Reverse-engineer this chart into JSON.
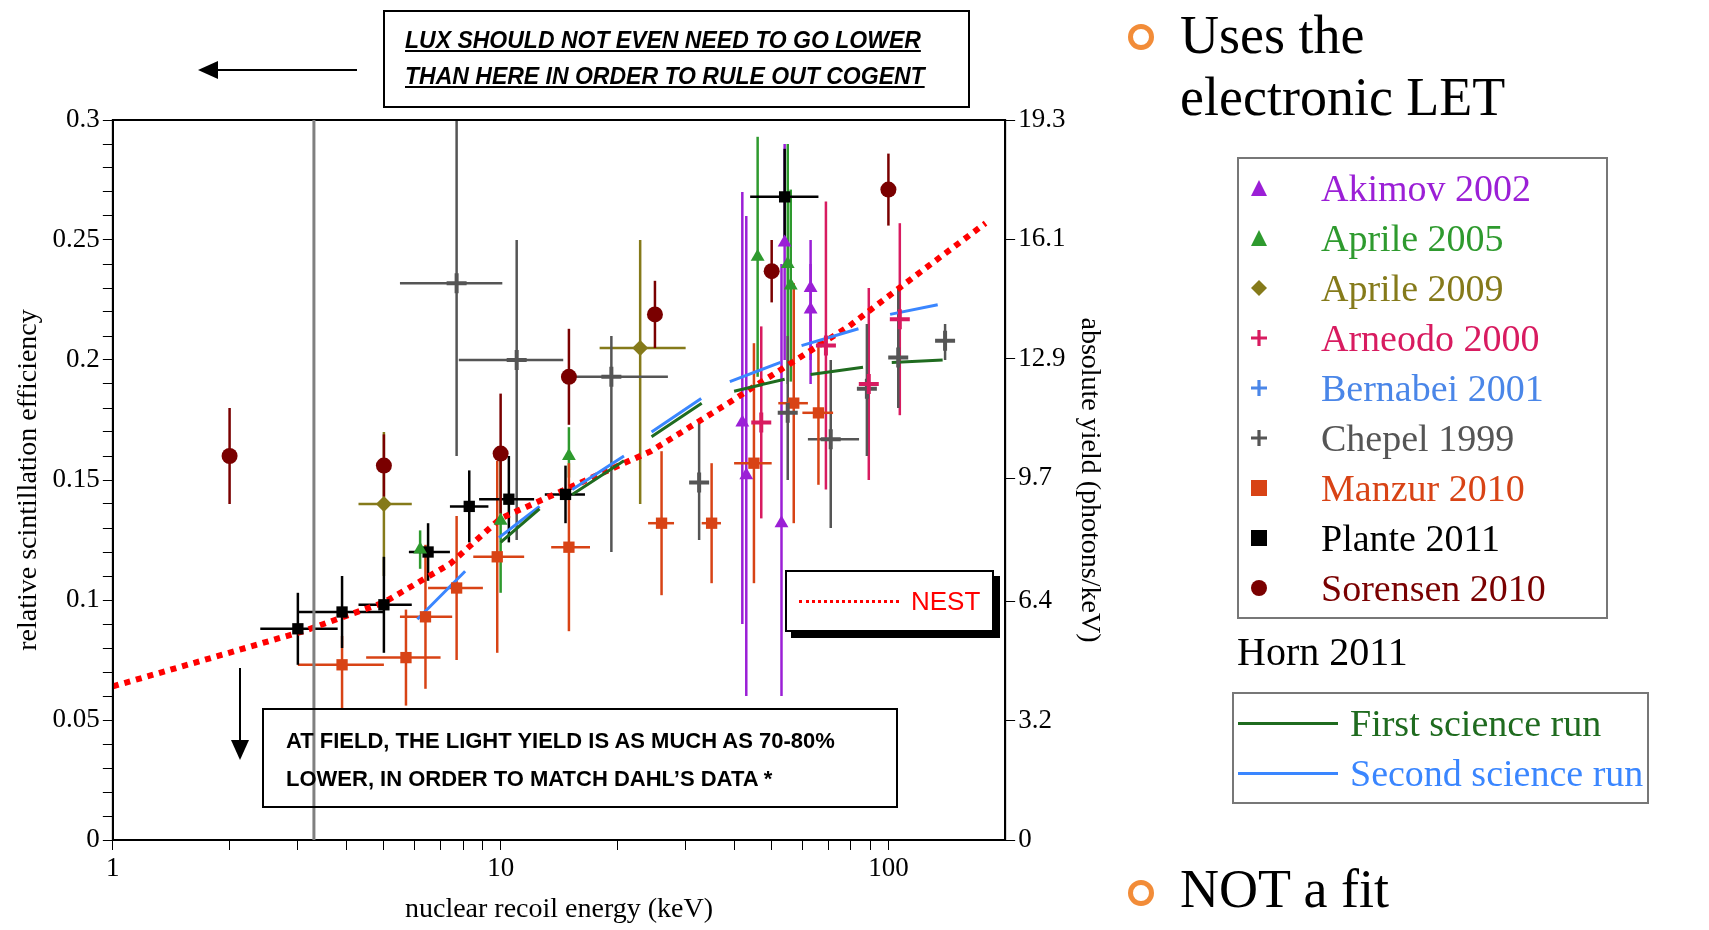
{
  "chart_data": {
    "type": "scatter",
    "xlabel": "nuclear recoil energy (keV)",
    "ylabel": "relative scintillation efficiency",
    "y2label": "absolute yield (photons/keV)",
    "legend_title": "Horn 2011",
    "log": "x",
    "grid": false,
    "legend": "right",
    "xlim": [
      1,
      200
    ],
    "xticks": [
      1,
      {
        "value": 2,
        "label": null
      },
      {
        "value": 3,
        "label": null
      },
      {
        "value": 4,
        "label": null
      },
      {
        "value": 5,
        "label": null
      },
      {
        "value": 6,
        "label": null
      },
      {
        "value": 7,
        "label": null
      },
      {
        "value": 8,
        "label": null
      },
      {
        "value": 9,
        "label": null
      },
      10,
      {
        "value": 20,
        "label": null
      },
      {
        "value": 30,
        "label": null
      },
      {
        "value": 40,
        "label": null
      },
      {
        "value": 50,
        "label": null
      },
      {
        "value": 60,
        "label": null
      },
      {
        "value": 70,
        "label": null
      },
      {
        "value": 80,
        "label": null
      },
      {
        "value": 90,
        "label": null
      },
      100
    ],
    "ylim": [
      0,
      0.3
    ],
    "yticks": [
      0,
      {
        "value": 0.01,
        "label": null
      },
      {
        "value": 0.02,
        "label": null
      },
      {
        "value": 0.03,
        "label": null
      },
      {
        "value": 0.04,
        "label": null
      },
      0.05,
      {
        "value": 0.06,
        "label": null
      },
      {
        "value": 0.07,
        "label": null
      },
      {
        "value": 0.08,
        "label": null
      },
      {
        "value": 0.09,
        "label": null
      },
      0.1,
      {
        "value": 0.11,
        "label": null
      },
      {
        "value": 0.12,
        "label": null
      },
      {
        "value": 0.13,
        "label": null
      },
      {
        "value": 0.14,
        "label": null
      },
      0.15,
      {
        "value": 0.16,
        "label": null
      },
      {
        "value": 0.17,
        "label": null
      },
      {
        "value": 0.18,
        "label": null
      },
      {
        "value": 0.19,
        "label": null
      },
      0.2,
      {
        "value": 0.21,
        "label": null
      },
      {
        "value": 0.22,
        "label": null
      },
      {
        "value": 0.23,
        "label": null
      },
      {
        "value": 0.24,
        "label": null
      },
      0.25,
      {
        "value": 0.26,
        "label": null
      },
      {
        "value": 0.27,
        "label": null
      },
      {
        "value": 0.28,
        "label": null
      },
      {
        "value": 0.29,
        "label": null
      },
      0.3
    ],
    "y2lim": [
      0,
      19.3
    ],
    "y2ticks": [
      0,
      3.2,
      6.4,
      9.7,
      12.9,
      16.1,
      19.3
    ],
    "ref_lines": [
      {
        "axis": "x",
        "value": 3.3,
        "color": "#808080"
      }
    ],
    "annotations": [
      "LUX SHOULD NOT EVEN NEED TO GO LOWER THAN HERE IN ORDER TO RULE OUT COGENT",
      "AT FIELD, THE LIGHT YIELD IS AS MUCH AS 70-80% LOWER, IN ORDER TO MATCH DAHL’S DATA   *",
      "Uses the electronic LET",
      "NOT a fit"
    ],
    "series": [
      {
        "name": "Akimov 2002",
        "marker": "triangle",
        "color": "#9b1fd6",
        "x": [
          42,
          43,
          54,
          53,
          63,
          63
        ],
        "values": [
          0.174,
          0.152,
          0.249,
          0.132,
          0.23,
          0.221
        ],
        "errors": [
          [
            0.09,
            0.27
          ],
          [
            0.06,
            0.26
          ],
          [
            0.2,
            0.29
          ],
          [
            0.06,
            0.24
          ],
          [
            0.2,
            0.25
          ],
          [
            0.19,
            0.24
          ]
        ]
      },
      {
        "name": "Aprile 2005",
        "marker": "triangle",
        "color": "#2e9a2e",
        "x": [
          6.2,
          10,
          15,
          46,
          55,
          56
        ],
        "values": [
          0.121,
          0.133,
          0.16,
          0.243,
          0.24,
          0.231
        ],
        "errors": [
          0.008,
          0.03,
          [
            0.151,
            0.172
          ],
          0.05,
          0.05,
          0.04
        ]
      },
      {
        "name": "Aprile 2009",
        "marker": "diamond",
        "color": "#857a1a",
        "x": [
          5,
          22.9
        ],
        "values": [
          0.14,
          0.205
        ],
        "errors": [
          [
            0.11,
            0.17
          ],
          [
            0.14,
            0.25
          ]
        ],
        "xerrors": [
          [
            4.3,
            5.9
          ],
          [
            18,
            30
          ]
        ]
      },
      {
        "name": "Arneodo 2000",
        "marker": "cross",
        "color": "#d81b60",
        "x": [
          47,
          69,
          89,
          107
        ],
        "values": [
          0.174,
          0.206,
          0.19,
          0.217
        ],
        "errors": [
          0.04,
          0.06,
          0.04,
          0.04
        ]
      },
      {
        "name": "Bernabei 2001",
        "marker": "cross",
        "color": "#4a86e8"
      },
      {
        "name": "Chepel 1999",
        "marker": "cross",
        "color": "#555555",
        "x": [
          7.7,
          11,
          19.3,
          32.5,
          55,
          71,
          88,
          106,
          140
        ],
        "values": [
          0.232,
          0.2,
          0.193,
          0.149,
          0.178,
          0.167,
          0.188,
          0.201,
          0.208
        ],
        "errors": [
          [
            0.16,
            0.3
          ],
          [
            0.125,
            0.25
          ],
          [
            0.12,
            0.21
          ],
          [
            0.125,
            0.175
          ],
          [
            0.15,
            0.21
          ],
          [
            0.13,
            0.2
          ],
          [
            0.16,
            0.215
          ],
          [
            0.18,
            0.23
          ],
          [
            0.2,
            0.215
          ]
        ],
        "xerrors": [
          [
            5.5,
            10.1
          ],
          [
            7.8,
            14.5
          ],
          [
            15.5,
            27
          ],
          null,
          null,
          [
            62,
            84
          ],
          null,
          null,
          null
        ]
      },
      {
        "name": "Manzur 2010",
        "marker": "square",
        "color": "#d84315",
        "x": [
          3.9,
          5.7,
          6.4,
          7.7,
          9.8,
          15,
          26,
          35,
          45,
          57,
          66
        ],
        "values": [
          0.073,
          0.076,
          0.093,
          0.105,
          0.118,
          0.122,
          0.132,
          0.132,
          0.157,
          0.182,
          0.178
        ],
        "errors": [
          [
            0.055,
            0.085
          ],
          0.02,
          0.03,
          0.03,
          0.04,
          0.035,
          0.03,
          0.025,
          0.05,
          0.05,
          0.03
        ],
        "xerrors": [
          [
            3,
            5
          ],
          [
            4.5,
            7
          ],
          [
            5.5,
            7.5
          ],
          [
            6.5,
            9
          ],
          [
            8.5,
            11.5
          ],
          [
            13.5,
            17
          ],
          [
            24,
            28
          ],
          [
            33,
            37
          ],
          [
            40,
            50
          ],
          [
            52,
            62
          ],
          [
            60,
            72
          ]
        ]
      },
      {
        "name": "Plante 2011",
        "marker": "square",
        "color": "#000000",
        "x": [
          3,
          3.9,
          5,
          6.5,
          8.3,
          10.5,
          14.7,
          54
        ],
        "values": [
          0.088,
          0.095,
          0.098,
          0.12,
          0.139,
          0.142,
          0.144,
          0.268
        ],
        "errors": [
          0.015,
          0.015,
          0.02,
          0.012,
          0.015,
          0.018,
          0.012,
          0.02
        ],
        "xerrors": [
          [
            2.4,
            3.8
          ],
          [
            3,
            5
          ],
          [
            4.3,
            5.9
          ],
          [
            5.8,
            7.4
          ],
          [
            7.4,
            9.3
          ],
          [
            8.8,
            12.2
          ],
          [
            13,
            16.5
          ],
          [
            44,
            66
          ]
        ]
      },
      {
        "name": "Sorensen 2010",
        "marker": "circle",
        "color": "#7a0000",
        "x": [
          2,
          5,
          10,
          15,
          25,
          50,
          100
        ],
        "values": [
          0.16,
          0.156,
          0.161,
          0.193,
          0.219,
          0.237,
          0.271
        ],
        "errors": [
          0.02,
          0.013,
          0.025,
          0.02,
          0.014,
          0.013,
          0.015
        ]
      },
      {
        "name": "First science run",
        "type": "line",
        "marker": "none",
        "line_style": "solid",
        "color": "#1f6b1f",
        "x": [
          10,
          12.6,
          14,
          15.3,
          20.8,
          22,
          24.5,
          33,
          36,
          40,
          54,
          58,
          63,
          86,
          95,
          102,
          138
        ],
        "values": [
          0.124,
          0.138,
          null,
          0.144,
          0.158,
          null,
          0.168,
          0.182,
          null,
          0.187,
          0.192,
          null,
          0.194,
          0.197,
          null,
          0.199,
          0.2
        ]
      },
      {
        "name": "Second science run",
        "type": "line",
        "marker": "none",
        "line_style": "solid",
        "color": "#3a86ff",
        "x": [
          6.1,
          8.1,
          9,
          9.9,
          12.6,
          14,
          15.3,
          20.8,
          22,
          24.5,
          32.9,
          36,
          39,
          52.7,
          56,
          59.7,
          83.7,
          92,
          101,
          134
        ],
        "values": [
          0.092,
          0.112,
          null,
          0.126,
          0.139,
          null,
          0.146,
          0.16,
          null,
          0.17,
          0.184,
          null,
          0.191,
          0.199,
          null,
          0.206,
          0.213,
          null,
          0.219,
          0.223
        ]
      },
      {
        "name": "NEST",
        "type": "line",
        "marker": "none",
        "line_style": "dotted",
        "color": "#ff0000",
        "x": [
          1,
          3.1,
          5,
          7.4,
          10,
          24.4,
          38.6,
          79,
          124,
          178
        ],
        "values": [
          0.064,
          0.087,
          0.099,
          0.115,
          0.134,
          0.162,
          0.182,
          0.214,
          0.238,
          0.257
        ]
      }
    ]
  }
}
